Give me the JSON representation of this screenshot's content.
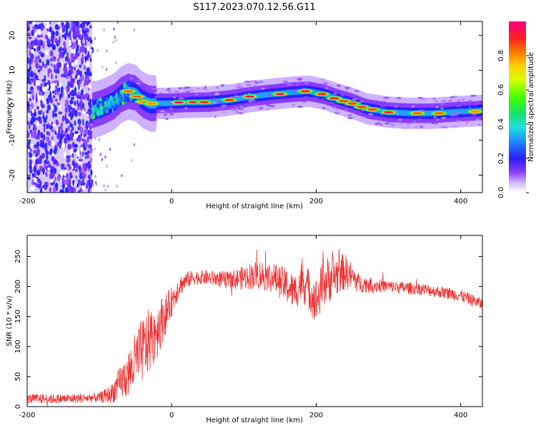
{
  "title": "S117.2023.070.12.56.G11",
  "chart_data": [
    {
      "type": "heatmap",
      "xlabel": "Height of straight line (km)",
      "ylabel": "Frequency (Hz)",
      "xlim": [
        -200,
        430
      ],
      "ylim": [
        -25,
        24
      ],
      "x_ticks": [
        -200,
        0,
        200,
        400
      ],
      "y_ticks": [
        -20,
        -10,
        0,
        10,
        20
      ],
      "colorbar": {
        "label": "Normalized spectral amplitude",
        "range": [
          0,
          1
        ],
        "ticks": [
          0.0,
          0.2,
          0.4,
          0.6,
          0.8
        ],
        "tick_labels": [
          "0.0",
          "0.2",
          "0.4",
          "0.6",
          "0.8"
        ]
      },
      "noise_region": {
        "x_range": [
          -200,
          -110
        ],
        "freq_range": [
          -25,
          24
        ]
      },
      "ridge": {
        "x": [
          -110,
          -95,
          -80,
          -70,
          -60,
          -50,
          -40,
          -30,
          -20,
          0,
          20,
          50,
          80,
          110,
          140,
          170,
          190,
          210,
          230,
          250,
          270,
          300,
          330,
          360,
          400,
          430
        ],
        "freq": [
          -1.5,
          -0.5,
          1.0,
          3.0,
          4.0,
          3.5,
          1.5,
          0.5,
          0.5,
          0.6,
          0.8,
          0.9,
          1.5,
          2.5,
          3.2,
          3.8,
          4.0,
          3.2,
          1.8,
          0.6,
          -1.0,
          -2.0,
          -2.3,
          -2.3,
          -1.8,
          -1.5
        ]
      },
      "blobs": [
        {
          "x": -60,
          "freq": 4.0,
          "amp": 0.85
        },
        {
          "x": -48,
          "freq": 2.5,
          "amp": 0.85
        },
        {
          "x": -40,
          "freq": 1.0,
          "amp": 0.8
        },
        {
          "x": -28,
          "freq": 0.5,
          "amp": 0.8
        },
        {
          "x": 10,
          "freq": 0.8,
          "amp": 0.95
        },
        {
          "x": 30,
          "freq": 0.9,
          "amp": 0.95
        },
        {
          "x": 45,
          "freq": 0.9,
          "amp": 0.9
        },
        {
          "x": 80,
          "freq": 1.5,
          "amp": 0.9
        },
        {
          "x": 108,
          "freq": 2.5,
          "amp": 0.95
        },
        {
          "x": 150,
          "freq": 3.2,
          "amp": 0.95
        },
        {
          "x": 185,
          "freq": 4.0,
          "amp": 0.95
        },
        {
          "x": 208,
          "freq": 3.2,
          "amp": 0.9
        },
        {
          "x": 225,
          "freq": 2.0,
          "amp": 0.9
        },
        {
          "x": 238,
          "freq": 1.2,
          "amp": 0.88
        },
        {
          "x": 250,
          "freq": 0.5,
          "amp": 0.88
        },
        {
          "x": 263,
          "freq": -0.5,
          "amp": 0.88
        },
        {
          "x": 278,
          "freq": -1.2,
          "amp": 0.88
        },
        {
          "x": 300,
          "freq": -2.0,
          "amp": 0.9
        },
        {
          "x": 340,
          "freq": -2.3,
          "amp": 0.85
        },
        {
          "x": 370,
          "freq": -2.3,
          "amp": 0.85
        },
        {
          "x": 420,
          "freq": -1.8,
          "amp": 0.8
        }
      ]
    },
    {
      "type": "line",
      "xlabel": "Height of straight line (km)",
      "ylabel": "SNR (10 * v/v)",
      "xlim": [
        -200,
        430
      ],
      "ylim": [
        0,
        285
      ],
      "x_ticks": [
        -200,
        0,
        200,
        400
      ],
      "y_ticks": [
        0,
        50,
        100,
        150,
        200,
        250
      ],
      "series": [
        {
          "name": "SNR",
          "color": "#ee3333",
          "x": [
            -200,
            -150,
            -100,
            -85,
            -70,
            -60,
            -50,
            -40,
            -30,
            -20,
            -10,
            0,
            10,
            20,
            30,
            50,
            80,
            100,
            120,
            140,
            160,
            170,
            180,
            190,
            200,
            210,
            220,
            240,
            260,
            300,
            350,
            400,
            430
          ],
          "y": [
            13,
            13,
            15,
            20,
            40,
            55,
            75,
            95,
            110,
            130,
            150,
            175,
            200,
            210,
            215,
            215,
            210,
            215,
            220,
            215,
            200,
            190,
            210,
            195,
            175,
            205,
            215,
            225,
            205,
            200,
            195,
            185,
            170
          ],
          "noise_amp": [
            8,
            8,
            8,
            15,
            30,
            40,
            50,
            55,
            55,
            50,
            35,
            25,
            18,
            14,
            12,
            12,
            15,
            20,
            25,
            25,
            30,
            30,
            35,
            35,
            40,
            40,
            40,
            30,
            15,
            10,
            10,
            10,
            10
          ]
        }
      ]
    }
  ]
}
